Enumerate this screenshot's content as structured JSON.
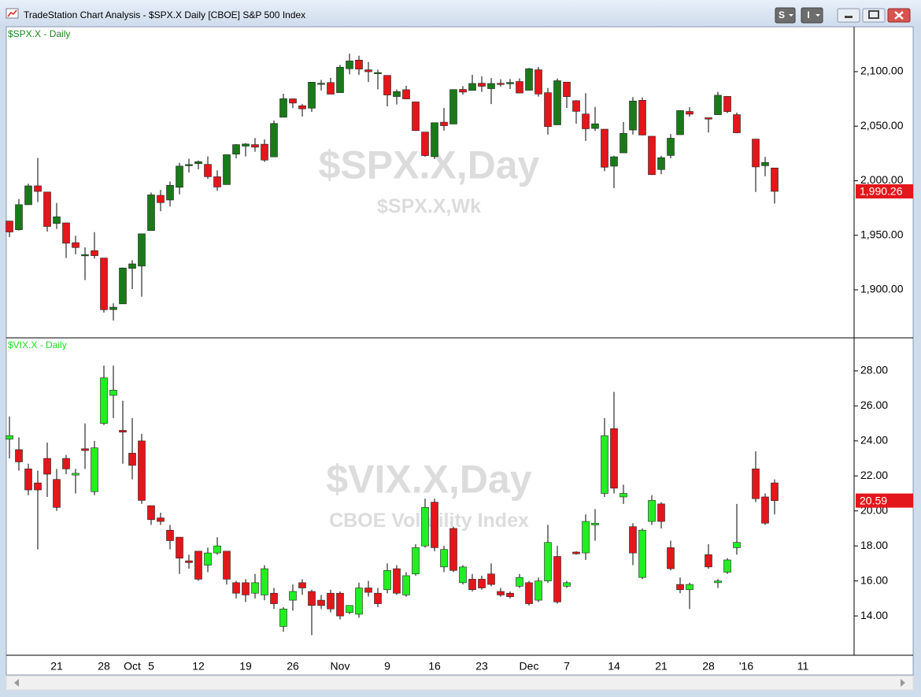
{
  "window": {
    "title": "TradeStation Chart Analysis - $SPX.X Daily [CBOE] S&P 500 Index",
    "buttons": [
      "S",
      "I"
    ]
  },
  "chart_data": {
    "type": "candlestick",
    "categories": [
      null,
      null,
      null,
      null,
      null,
      "21",
      null,
      null,
      null,
      null,
      "28",
      null,
      null,
      "Oct",
      null,
      "5",
      null,
      null,
      null,
      null,
      "12",
      null,
      null,
      null,
      null,
      "19",
      null,
      null,
      null,
      null,
      "26",
      null,
      null,
      null,
      null,
      "Nov",
      null,
      null,
      null,
      null,
      "9",
      null,
      null,
      null,
      null,
      "16",
      null,
      null,
      null,
      null,
      "23",
      null,
      null,
      null,
      null,
      "Dec",
      null,
      null,
      null,
      "7",
      null,
      null,
      null,
      null,
      "14",
      null,
      null,
      null,
      null,
      "21",
      null,
      null,
      null,
      null,
      "28",
      null,
      null,
      null,
      "'16",
      null,
      null,
      null,
      null,
      null,
      "11"
    ],
    "panels": [
      {
        "label": "$SPX.X - Daily",
        "label_color": "#1a8a1a",
        "watermark": "$SPX.X,Day",
        "watermark_sub": "$SPX.X,Wk",
        "up_color": "#1a7a1a",
        "down_color": "#e3161b",
        "ylim": [
          1856.7,
          2140.4
        ],
        "yticks": [
          {
            "value": 1900,
            "label": "1,900.00"
          },
          {
            "value": 1950,
            "label": "1,950.00"
          },
          {
            "value": 2000,
            "label": "2,000.00"
          },
          {
            "value": 2050,
            "label": "2,050.00"
          },
          {
            "value": 2100,
            "label": "2,100.00"
          }
        ],
        "last_value": {
          "value": 1990.26,
          "label": "1,990.26"
        },
        "open": [
          1963.06,
          1955.1,
          1978.02,
          1995.33,
          1989.66,
          1960.84,
          1961.39,
          1943.24,
          1932.24,
          1935.93,
          1929.18,
          1881.9,
          1887.14,
          1919.65,
          1921.77,
          1954.33,
          1986.63,
          1982.34,
          1994.01,
          2013.73,
          2015.65,
          2015.0,
          2003.66,
          1996.47,
          2024.37,
          2031.73,
          2033.13,
          2033.47,
          2021.88,
          2058.19,
          2075.08,
          2068.75,
          2066.48,
          2088.35,
          2090.0,
          2080.76,
          2102.63,
          2110.6,
          2101.68,
          2098.6,
          2096.56,
          2077.19,
          2083.41,
          2072.29,
          2044.64,
          2022.08,
          2053.67,
          2051.99,
          2083.7,
          2082.82,
          2089.41,
          2084.42,
          2089.3,
          2088.82,
          2090.95,
          2082.93,
          2101.71,
          2080.71,
          2051.24,
          2090.42,
          2073.39,
          2061.17,
          2047.93,
          2047.27,
          2013.37,
          2025.55,
          2046.5,
          2073.76,
          2040.81,
          2010.27,
          2023.15,
          2042.2,
          2063.52,
          null,
          2057.77,
          2060.54,
          2077.34,
          2060.59,
          null,
          2038.2,
          2013.78,
          2011.71,
          null,
          null,
          null
        ],
        "high": [
          1963.06,
          1983.19,
          1997.26,
          2020.86,
          1989.66,
          1979.64,
          1961.39,
          1949.52,
          1938.88,
          1952.89,
          1929.18,
          1887.64,
          1920.53,
          1927.21,
          1951.36,
          1989.17,
          1991.62,
          1999.31,
          2016.5,
          2020.13,
          2018.66,
          2022.34,
          2009.56,
          2024.15,
          2033.54,
          2034.45,
          2039.12,
          2037.97,
          2055.2,
          2079.74,
          2075.14,
          2070.37,
          2090.35,
          2092.52,
          2094.32,
          2106.2,
          2116.48,
          2114.59,
          2108.78,
          2101.91,
          2096.56,
          2083.67,
          2086.94,
          2072.29,
          2044.64,
          2053.22,
          2066.69,
          2083.58,
          2086.74,
          2097.06,
          2095.61,
          2094.12,
          2093.0,
          2093.29,
          2093.81,
          2103.37,
          2104.27,
          2085.0,
          2093.84,
          2090.42,
          2073.85,
          2080.33,
          2067.65,
          2047.27,
          2022.92,
          2053.87,
          2076.72,
          2076.37,
          2040.81,
          2022.9,
          2042.74,
          2064.73,
          2067.36,
          null,
          2057.77,
          2081.56,
          2077.34,
          2062.54,
          null,
          2038.2,
          2021.94,
          2011.71,
          null,
          null,
          null
        ],
        "low": [
          1948.27,
          1954.3,
          1977.93,
          1980.48,
          1953.45,
          1955.8,
          1929.22,
          1932.57,
          1908.92,
          1928.75,
          1879.21,
          1871.91,
          1887.14,
          1900.7,
          1893.7,
          1954.33,
          1971.99,
          1976.44,
          1987.53,
          2007.61,
          2010.55,
          2001.78,
          1990.73,
          1996.47,
          2020.46,
          2022.31,
          2026.61,
          2017.22,
          2021.88,
          2058.19,
          2066.53,
          2058.84,
          2063.11,
          2082.63,
          2079.34,
          2080.76,
          2097.51,
          2096.98,
          2090.41,
          2083.74,
          2068.24,
          2069.91,
          2074.85,
          2045.66,
          2022.02,
          2019.94,
          2045.9,
          2051.99,
          2078.76,
          2082.82,
          2081.39,
          2070.29,
          2086.3,
          2084.13,
          2080.41,
          2082.93,
          2077.11,
          2042.35,
          2051.24,
          2066.78,
          2052.32,
          2036.53,
          2045.67,
          2008.8,
          1993.26,
          2025.55,
          2042.43,
          2041.66,
          2005.33,
          2005.93,
          2020.49,
          2042.2,
          2058.73,
          null,
          2044.2,
          2060.54,
          2061.97,
          2043.62,
          null,
          1989.68,
          2004.17,
          1979.05,
          null,
          null,
          null
        ],
        "close": [
          1953.03,
          1978.09,
          1995.31,
          1990.2,
          1958.08,
          1966.97,
          1942.74,
          1938.76,
          1932.24,
          1931.34,
          1881.77,
          1884.09,
          1920.03,
          1923.82,
          1951.36,
          1987.05,
          1979.92,
          1995.83,
          2013.43,
          2014.89,
          2017.46,
          2003.69,
          1994.24,
          2023.86,
          2033.11,
          2033.66,
          2030.77,
          2018.94,
          2052.51,
          2075.15,
          2071.18,
          2065.89,
          2090.35,
          2089.41,
          2079.36,
          2104.05,
          2109.79,
          2102.31,
          2099.93,
          2099.2,
          2078.58,
          2081.72,
          2075.0,
          2045.97,
          2023.04,
          2053.19,
          2050.44,
          2083.58,
          2081.24,
          2089.17,
          2086.59,
          2089.14,
          2088.87,
          2090.11,
          2080.41,
          2102.63,
          2079.51,
          2049.62,
          2091.69,
          2077.07,
          2063.59,
          2047.62,
          2052.23,
          2012.37,
          2021.94,
          2043.41,
          2073.07,
          2041.89,
          2005.55,
          2021.15,
          2038.97,
          2064.29,
          2060.99,
          null,
          2056.5,
          2078.36,
          2063.36,
          2043.94,
          null,
          2012.66,
          2016.71,
          1990.26,
          null,
          null,
          null
        ]
      },
      {
        "label": "$VIX.X - Daily",
        "label_color": "#22dd22",
        "watermark": "$VIX.X,Day",
        "watermark_sub": "CBOE Volatility Index",
        "up_color": "#22ee22",
        "down_color": "#e3161b",
        "ylim": [
          11.8,
          29.84
        ],
        "yticks": [
          {
            "value": 14,
            "label": "14.00"
          },
          {
            "value": 16,
            "label": "16.00"
          },
          {
            "value": 18,
            "label": "18.00"
          },
          {
            "value": 20,
            "label": "20.00"
          },
          {
            "value": 22,
            "label": "22.00"
          },
          {
            "value": 24,
            "label": "24.00"
          },
          {
            "value": 26,
            "label": "26.00"
          },
          {
            "value": 28,
            "label": "28.00"
          }
        ],
        "last_value": {
          "value": 20.59,
          "label": "20.59"
        },
        "open": [
          24.1,
          23.5,
          22.4,
          21.6,
          23.0,
          21.8,
          23.0,
          22.05,
          23.55,
          21.1,
          25.0,
          26.6,
          24.6,
          23.3,
          24.0,
          20.3,
          19.6,
          18.9,
          18.5,
          17.15,
          17.7,
          16.9,
          17.6,
          17.7,
          15.9,
          15.9,
          15.3,
          15.2,
          15.3,
          13.4,
          14.9,
          15.9,
          15.4,
          14.9,
          15.3,
          15.3,
          14.2,
          14.1,
          15.6,
          15.3,
          15.5,
          16.7,
          15.2,
          16.4,
          18.0,
          20.5,
          16.8,
          19.0,
          15.9,
          16.1,
          16.1,
          16.4,
          15.4,
          15.3,
          15.7,
          15.9,
          14.9,
          16.0,
          17.4,
          15.7,
          17.65,
          17.6,
          19.2,
          21.0,
          24.7,
          20.8,
          19.1,
          16.2,
          19.4,
          20.4,
          17.9,
          15.8,
          15.5,
          null,
          17.5,
          15.9,
          16.5,
          17.9,
          null,
          22.4,
          20.8,
          21.6,
          null,
          null,
          null
        ],
        "high": [
          25.4,
          24.2,
          22.7,
          22.3,
          23.9,
          22.4,
          23.2,
          22.4,
          25.0,
          24.0,
          28.3,
          28.3,
          26.3,
          25.3,
          24.4,
          20.3,
          19.9,
          19.2,
          18.5,
          17.5,
          17.7,
          17.9,
          18.5,
          17.7,
          16.0,
          16.1,
          16.4,
          16.9,
          15.6,
          14.5,
          15.8,
          16.1,
          15.5,
          15.2,
          15.5,
          15.4,
          14.6,
          15.9,
          16.0,
          15.6,
          17.0,
          16.9,
          16.5,
          18.1,
          20.7,
          20.7,
          18.0,
          19.1,
          16.9,
          16.4,
          16.3,
          17.0,
          15.6,
          15.4,
          16.4,
          16.0,
          16.2,
          19.2,
          18.0,
          16.0,
          17.7,
          19.8,
          20.1,
          25.3,
          26.8,
          21.5,
          19.3,
          19.0,
          20.9,
          20.5,
          18.3,
          16.2,
          15.9,
          null,
          18.1,
          16.1,
          17.3,
          20.4,
          null,
          23.4,
          21.0,
          21.8,
          null,
          null,
          null
        ],
        "low": [
          23.0,
          22.3,
          20.9,
          17.8,
          20.8,
          20.0,
          22.1,
          21.0,
          22.4,
          20.9,
          24.9,
          25.3,
          22.7,
          21.8,
          20.4,
          19.2,
          19.2,
          17.8,
          16.4,
          16.7,
          16.0,
          16.5,
          17.5,
          15.8,
          15.0,
          14.8,
          15.0,
          14.9,
          14.4,
          13.1,
          14.3,
          15.2,
          12.9,
          14.4,
          14.2,
          13.8,
          14.1,
          13.9,
          15.1,
          14.5,
          15.3,
          15.2,
          15.1,
          16.3,
          17.9,
          17.7,
          16.5,
          16.5,
          15.8,
          15.4,
          15.5,
          15.7,
          15.1,
          15.0,
          15.6,
          14.6,
          14.8,
          15.9,
          14.7,
          15.6,
          17.5,
          17.2,
          18.3,
          20.8,
          21.0,
          20.4,
          16.9,
          16.1,
          19.2,
          19.0,
          16.6,
          15.3,
          14.4,
          null,
          16.7,
          15.6,
          16.4,
          17.5,
          null,
          20.5,
          19.2,
          19.8,
          null,
          null,
          null
        ],
        "close": [
          24.3,
          22.8,
          21.2,
          21.2,
          22.1,
          20.2,
          22.4,
          22.15,
          23.45,
          23.6,
          27.6,
          26.9,
          24.5,
          22.6,
          20.6,
          19.5,
          19.4,
          18.3,
          17.3,
          17.05,
          16.1,
          17.6,
          18.0,
          16.1,
          15.3,
          15.2,
          15.9,
          16.7,
          14.7,
          14.4,
          15.4,
          15.6,
          14.6,
          14.6,
          14.4,
          14.0,
          14.6,
          15.6,
          15.35,
          14.7,
          16.6,
          15.3,
          16.3,
          17.9,
          20.2,
          17.9,
          17.8,
          16.6,
          16.8,
          15.5,
          15.6,
          15.8,
          15.2,
          15.1,
          16.2,
          14.7,
          16.0,
          18.2,
          14.8,
          15.9,
          17.55,
          19.4,
          19.3,
          24.3,
          21.3,
          21.0,
          17.6,
          18.9,
          20.6,
          19.4,
          16.7,
          15.5,
          15.8,
          null,
          16.8,
          16.0,
          17.2,
          18.2,
          null,
          20.7,
          19.3,
          20.59,
          null,
          null,
          null
        ]
      }
    ]
  }
}
